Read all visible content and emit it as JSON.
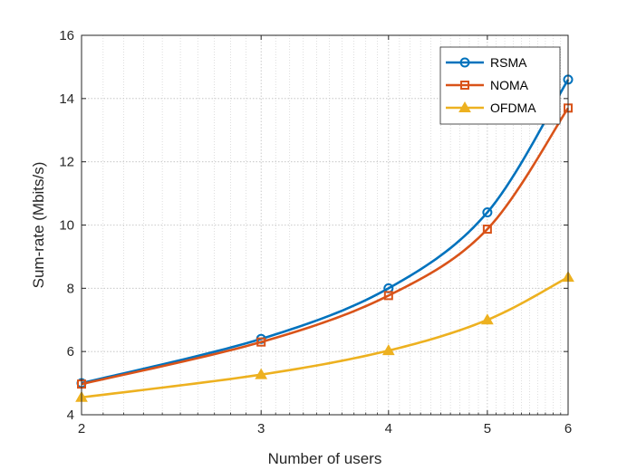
{
  "chart_data": {
    "type": "line",
    "title": "",
    "xlabel": "Number of users",
    "ylabel": "Sum-rate (Mbits/s)",
    "x_scale": "log",
    "x": [
      2,
      3,
      4,
      5,
      6
    ],
    "xticks": [
      "2",
      "3",
      "4",
      "5",
      "6"
    ],
    "xlim": [
      2,
      6
    ],
    "ylim": [
      4,
      16
    ],
    "yticks": [
      "4",
      "6",
      "8",
      "10",
      "12",
      "14",
      "16"
    ],
    "grid": true,
    "minor_grid_x": true,
    "legend_position": "top-right",
    "series": [
      {
        "name": "RSMA",
        "values": [
          5.0,
          6.4,
          8.0,
          10.4,
          14.6
        ],
        "color": "#0072BD",
        "marker": "circle"
      },
      {
        "name": "NOMA",
        "values": [
          4.97,
          6.3,
          7.77,
          9.87,
          13.7
        ],
        "color": "#D95319",
        "marker": "square"
      },
      {
        "name": "OFDMA",
        "values": [
          4.55,
          5.27,
          6.03,
          7.0,
          8.35
        ],
        "color": "#EDB120",
        "marker": "triangle"
      }
    ]
  }
}
